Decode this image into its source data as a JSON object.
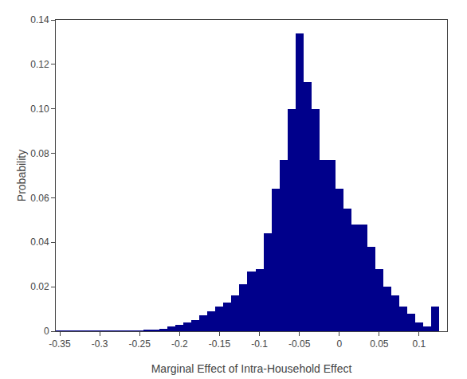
{
  "chart_data": {
    "type": "bar",
    "x": [
      -0.35,
      -0.34,
      -0.33,
      -0.32,
      -0.31,
      -0.3,
      -0.29,
      -0.28,
      -0.27,
      -0.26,
      -0.25,
      -0.24,
      -0.23,
      -0.22,
      -0.21,
      -0.2,
      -0.19,
      -0.18,
      -0.17,
      -0.16,
      -0.15,
      -0.14,
      -0.13,
      -0.12,
      -0.11,
      -0.1,
      -0.09,
      -0.08,
      -0.07,
      -0.06,
      -0.05,
      -0.04,
      -0.03,
      -0.02,
      -0.01,
      0.0,
      0.01,
      0.02,
      0.03,
      0.04,
      0.05,
      0.06,
      0.07,
      0.08,
      0.09,
      0.1,
      0.11,
      0.12
    ],
    "values": [
      0.0001,
      0.0001,
      0.0001,
      0.0001,
      0.0001,
      0.0001,
      0.0001,
      0.0002,
      0.0002,
      0.0002,
      0.0003,
      0.0004,
      0.0006,
      0.001,
      0.002,
      0.003,
      0.004,
      0.005,
      0.007,
      0.009,
      0.011,
      0.013,
      0.016,
      0.021,
      0.027,
      0.028,
      0.044,
      0.064,
      0.077,
      0.1,
      0.134,
      0.112,
      0.1,
      0.077,
      0.077,
      0.064,
      0.055,
      0.048,
      0.048,
      0.038,
      0.028,
      0.02,
      0.016,
      0.011,
      0.008,
      0.004,
      0.002,
      0.011
    ],
    "color": "#00008B",
    "xlabel": "Marginal Effect of Intra-Household Effect",
    "ylabel": "Probability",
    "xlim": [
      -0.355,
      0.135
    ],
    "ylim": [
      0,
      0.14
    ],
    "xticks": [
      -0.35,
      -0.3,
      -0.25,
      -0.2,
      -0.15,
      -0.1,
      -0.05,
      0,
      0.05,
      0.1
    ],
    "yticks": [
      0,
      0.02,
      0.04,
      0.06,
      0.08,
      {
        "value": 0.1,
        "label": "0.10"
      },
      0.12,
      0.14
    ],
    "grid": false
  }
}
